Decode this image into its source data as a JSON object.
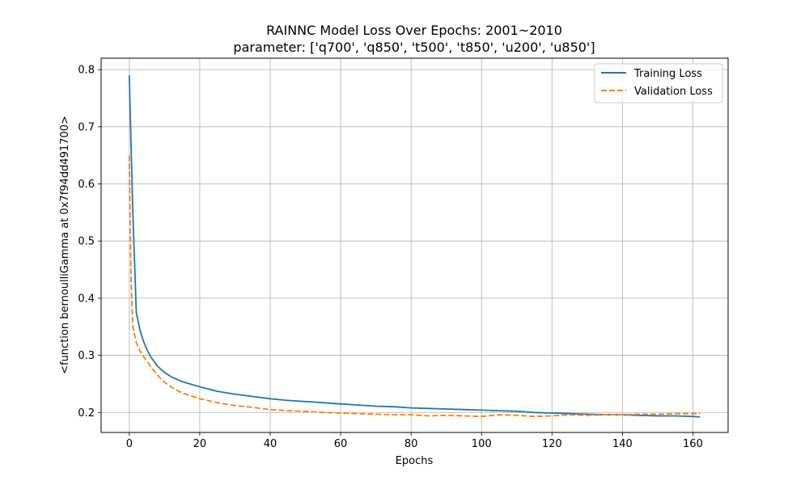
{
  "chart_data": {
    "type": "line",
    "title": "RAINNC Model Loss Over Epochs: 2001~2010",
    "subtitle": "parameter: ['q700', 'q850', 't500', 't850', 'u200', 'u850']",
    "xlabel": "Epochs",
    "ylabel": "<function bernoulliGamma at 0x7f94dd491700>",
    "xlim": [
      -8,
      170
    ],
    "ylim": [
      0.165,
      0.82
    ],
    "xticks": [
      0,
      20,
      40,
      60,
      80,
      100,
      120,
      140,
      160
    ],
    "yticks": [
      0.2,
      0.3,
      0.4,
      0.5,
      0.6,
      0.7,
      0.8
    ],
    "grid": true,
    "legend_position": "top-right",
    "series": [
      {
        "name": "Training Loss",
        "color": "#1f77b4",
        "style": "solid",
        "x": [
          0,
          1,
          2,
          3,
          4,
          5,
          6,
          8,
          10,
          12,
          15,
          20,
          25,
          30,
          35,
          40,
          45,
          50,
          55,
          60,
          65,
          70,
          75,
          80,
          85,
          90,
          95,
          100,
          105,
          110,
          115,
          120,
          125,
          130,
          135,
          140,
          145,
          150,
          155,
          160,
          162
        ],
        "y": [
          0.79,
          0.55,
          0.375,
          0.345,
          0.325,
          0.31,
          0.298,
          0.281,
          0.27,
          0.262,
          0.254,
          0.245,
          0.237,
          0.232,
          0.228,
          0.224,
          0.221,
          0.219,
          0.217,
          0.215,
          0.213,
          0.211,
          0.21,
          0.208,
          0.207,
          0.206,
          0.205,
          0.204,
          0.203,
          0.202,
          0.2,
          0.199,
          0.198,
          0.197,
          0.196,
          0.196,
          0.195,
          0.194,
          0.194,
          0.193,
          0.192
        ]
      },
      {
        "name": "Validation Loss",
        "color": "#ff7f0e",
        "style": "dashed",
        "x": [
          0,
          0.5,
          1,
          2,
          3,
          4,
          5,
          6,
          8,
          10,
          12,
          15,
          20,
          25,
          30,
          35,
          40,
          45,
          50,
          55,
          60,
          65,
          70,
          75,
          80,
          85,
          90,
          95,
          100,
          105,
          110,
          115,
          120,
          125,
          130,
          135,
          140,
          145,
          150,
          155,
          160,
          162
        ],
        "y": [
          0.65,
          0.43,
          0.35,
          0.322,
          0.308,
          0.298,
          0.29,
          0.281,
          0.265,
          0.253,
          0.244,
          0.234,
          0.224,
          0.217,
          0.212,
          0.209,
          0.205,
          0.203,
          0.202,
          0.2,
          0.199,
          0.198,
          0.197,
          0.196,
          0.196,
          0.194,
          0.195,
          0.194,
          0.193,
          0.196,
          0.195,
          0.193,
          0.194,
          0.196,
          0.195,
          0.196,
          0.196,
          0.197,
          0.197,
          0.198,
          0.198,
          0.198
        ]
      }
    ]
  }
}
